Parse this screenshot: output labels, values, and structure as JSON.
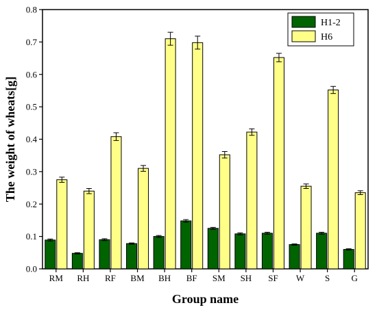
{
  "chart_data": {
    "type": "bar",
    "xlabel": "Group name",
    "ylabel": "The weight of wheats[g]",
    "ylim": [
      0,
      0.8
    ],
    "yticks": [
      "0.0",
      "0.1",
      "0.2",
      "0.3",
      "0.4",
      "0.5",
      "0.6",
      "0.7",
      "0.8"
    ],
    "categories": [
      "RM",
      "RH",
      "RF",
      "BM",
      "BH",
      "BF",
      "SM",
      "SH",
      "SF",
      "W",
      "S",
      "G"
    ],
    "series": [
      {
        "name": "H1-2",
        "color": "#006400",
        "values": [
          0.089,
          0.048,
          0.09,
          0.078,
          0.1,
          0.148,
          0.125,
          0.108,
          0.11,
          0.075,
          0.11,
          0.06
        ],
        "errors": [
          0.003,
          0.002,
          0.003,
          0.002,
          0.003,
          0.004,
          0.003,
          0.003,
          0.003,
          0.002,
          0.003,
          0.002
        ]
      },
      {
        "name": "H6",
        "color": "#FFFF88",
        "values": [
          0.275,
          0.24,
          0.408,
          0.31,
          0.71,
          0.698,
          0.352,
          0.422,
          0.652,
          0.255,
          0.552,
          0.235
        ],
        "errors": [
          0.008,
          0.008,
          0.012,
          0.009,
          0.02,
          0.02,
          0.01,
          0.01,
          0.013,
          0.007,
          0.011,
          0.006
        ]
      }
    ],
    "legend": "top-right",
    "grid": false
  }
}
